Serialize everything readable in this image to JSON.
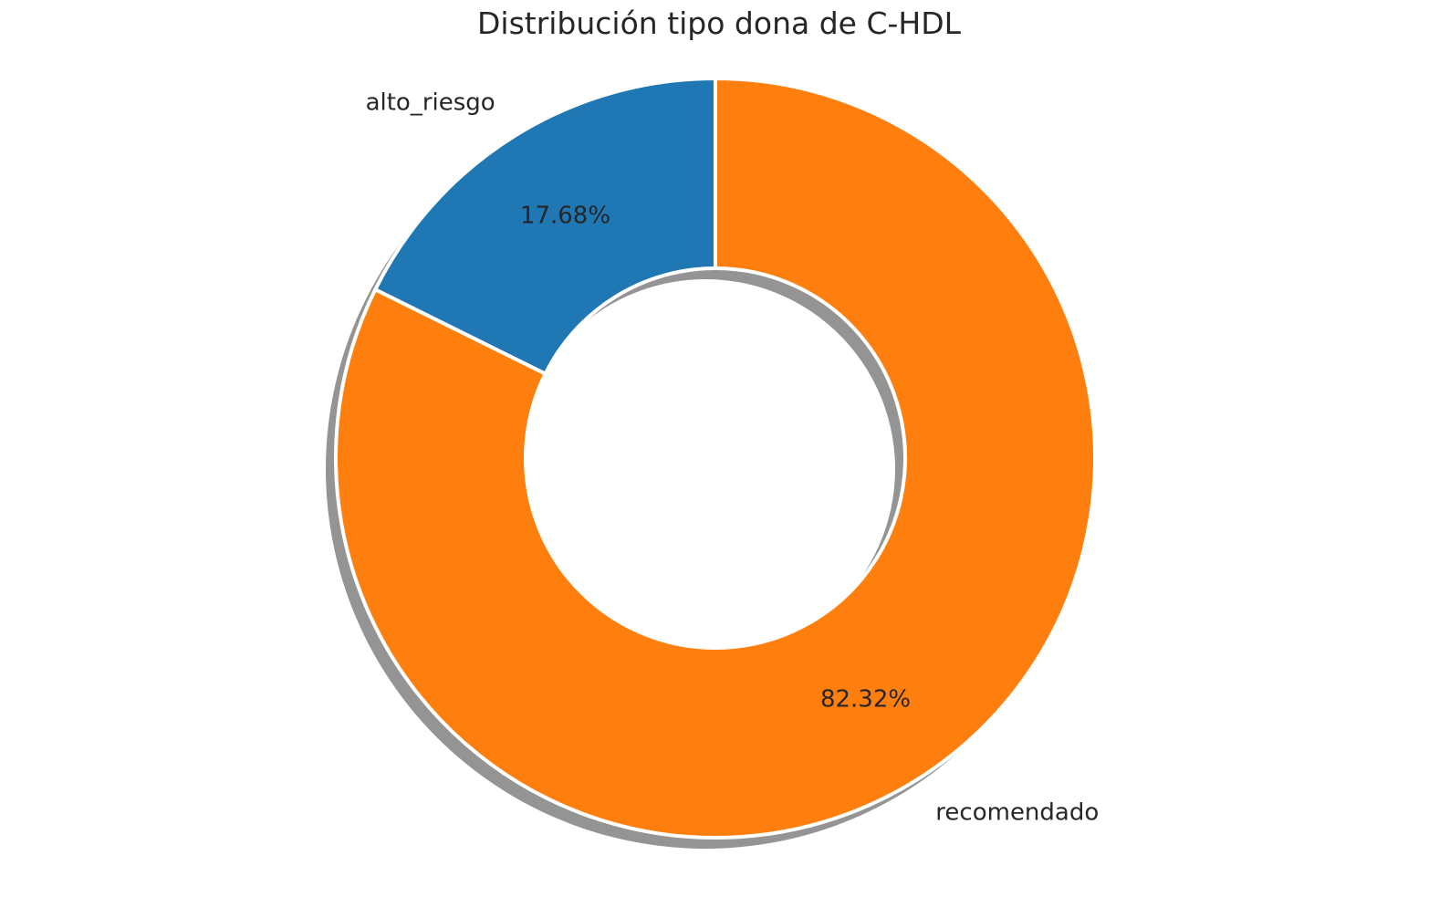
{
  "chart_data": {
    "type": "pie",
    "style": "donut",
    "title": "Distribución tipo dona de C-HDL",
    "labels": [
      "alto_riesgo",
      "recomendado"
    ],
    "values": [
      17.68,
      82.32
    ],
    "value_labels": [
      "17.68%",
      "82.32%"
    ],
    "colors": [
      "#1f77b4",
      "#ff7f0e"
    ],
    "shadow": true,
    "start_angle_deg": 90,
    "direction": "counterclockwise",
    "edge_color": "#ffffff"
  }
}
